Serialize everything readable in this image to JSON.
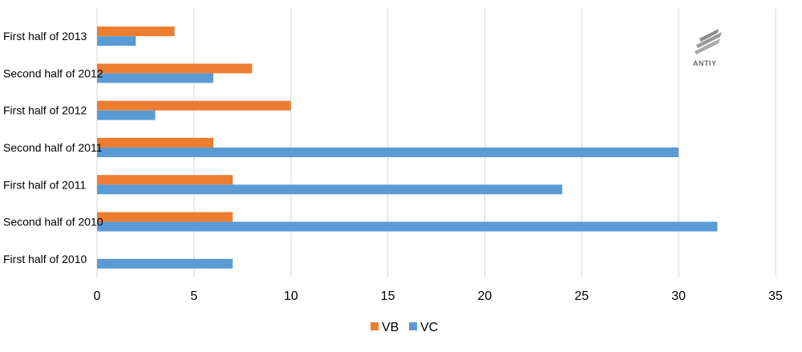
{
  "chart_data": {
    "type": "bar",
    "orientation": "horizontal",
    "categories": [
      "First half of 2013",
      "Second half of 2012",
      "First half of 2012",
      "Second half of 2011",
      "First half of 2011",
      "Second half of 2010",
      "First half of 2010"
    ],
    "series": [
      {
        "name": "VB",
        "color": "#ED7D31",
        "values": [
          4,
          8,
          10,
          6,
          7,
          7,
          0
        ]
      },
      {
        "name": "VC",
        "color": "#5B9BD5",
        "values": [
          2,
          6,
          3,
          30,
          24,
          32,
          7
        ]
      }
    ],
    "xlim": [
      0,
      35
    ],
    "x_ticks": [
      0,
      5,
      10,
      15,
      20,
      25,
      30,
      35
    ],
    "grid": true,
    "legend_position": "bottom",
    "gridline_color": "#D9D9D9"
  },
  "logo": {
    "text": "ANTIY",
    "icon": "antiy-logo-icon"
  }
}
